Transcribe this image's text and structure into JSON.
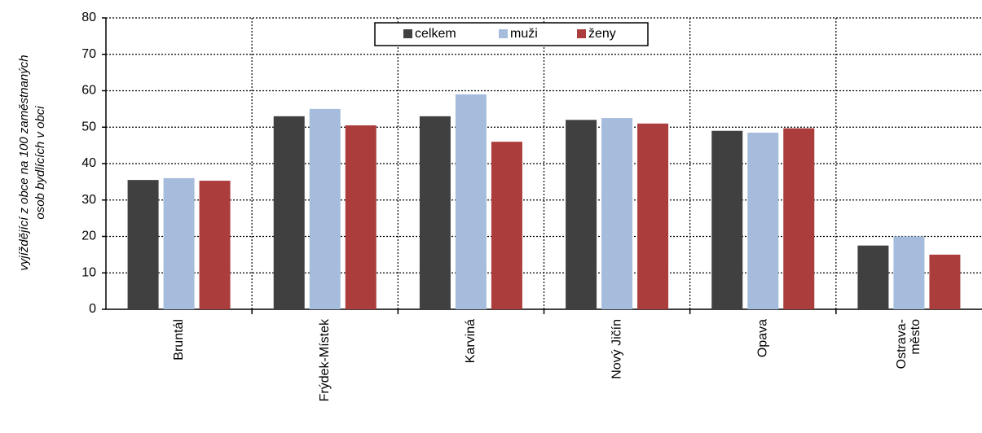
{
  "chart_data": {
    "type": "bar",
    "y_label": [
      "vyjíždějící z obce na 100 zaměstnaných",
      "osob bydlících v obci"
    ],
    "categories": [
      "Bruntál",
      "Frýdek-Místek",
      "Karviná",
      "Nový Jičín",
      "Opava",
      "Ostrava-\nměsto"
    ],
    "series": [
      {
        "name": "celkem",
        "color": "#404040",
        "values": [
          35.5,
          53,
          53,
          52,
          49,
          17.5
        ]
      },
      {
        "name": "muži",
        "color": "#a5bcdc",
        "values": [
          36,
          55,
          59,
          52.5,
          48.5,
          20
        ]
      },
      {
        "name": "ženy",
        "color": "#ac3d3d",
        "values": [
          35.3,
          50.5,
          46,
          51,
          49.7,
          15
        ]
      }
    ],
    "ylim": [
      0,
      80
    ],
    "yticks": [
      0,
      10,
      20,
      30,
      40,
      50,
      60,
      70,
      80
    ],
    "grid": true,
    "legend": "top"
  }
}
